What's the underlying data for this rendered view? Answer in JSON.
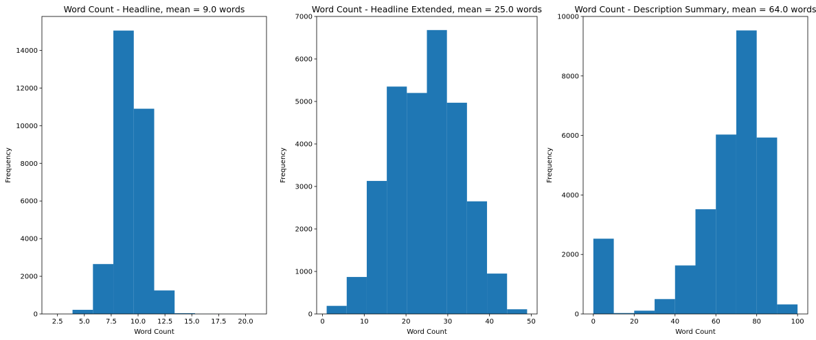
{
  "chart_data": [
    {
      "type": "bar",
      "title": "Word Count - Headline, mean = 9.0 words",
      "xlabel": "Word Count",
      "ylabel": "Frequency",
      "xlim": [
        1.05,
        21.95
      ],
      "ylim": [
        0,
        15800
      ],
      "xticks": [
        2.5,
        5.0,
        7.5,
        10.0,
        12.5,
        15.0,
        17.5,
        20.0
      ],
      "xtick_labels": [
        "2.5",
        "5.0",
        "7.5",
        "10.0",
        "12.5",
        "15.0",
        "17.5",
        "20.0"
      ],
      "yticks": [
        0,
        2000,
        4000,
        6000,
        8000,
        10000,
        12000,
        14000
      ],
      "ytick_labels": [
        "0",
        "2000",
        "4000",
        "6000",
        "8000",
        "10000",
        "12000",
        "14000"
      ],
      "bins": [
        {
          "x0": 2.0,
          "x1": 3.9,
          "value": 0
        },
        {
          "x0": 3.9,
          "x1": 5.8,
          "value": 220
        },
        {
          "x0": 5.8,
          "x1": 7.7,
          "value": 2650
        },
        {
          "x0": 7.7,
          "x1": 9.6,
          "value": 15050
        },
        {
          "x0": 9.6,
          "x1": 11.5,
          "value": 10900
        },
        {
          "x0": 11.5,
          "x1": 13.4,
          "value": 1250
        },
        {
          "x0": 13.4,
          "x1": 15.3,
          "value": 40
        },
        {
          "x0": 15.3,
          "x1": 17.2,
          "value": 5
        },
        {
          "x0": 17.2,
          "x1": 19.1,
          "value": 2
        },
        {
          "x0": 19.1,
          "x1": 21.0,
          "value": 1
        }
      ]
    },
    {
      "type": "bar",
      "title": "Word Count - Headline Extended, mean = 25.0 words",
      "xlabel": "Word Count",
      "ylabel": "Frequency",
      "xlim": [
        -1.4,
        51.4
      ],
      "ylim": [
        0,
        7000
      ],
      "xticks": [
        0,
        10,
        20,
        30,
        40,
        50
      ],
      "xtick_labels": [
        "0",
        "10",
        "20",
        "30",
        "40",
        "50"
      ],
      "yticks": [
        0,
        1000,
        2000,
        3000,
        4000,
        5000,
        6000,
        7000
      ],
      "ytick_labels": [
        "0",
        "1000",
        "2000",
        "3000",
        "4000",
        "5000",
        "6000",
        "7000"
      ],
      "bins": [
        {
          "x0": 1.0,
          "x1": 5.8,
          "value": 190
        },
        {
          "x0": 5.8,
          "x1": 10.6,
          "value": 870
        },
        {
          "x0": 10.6,
          "x1": 15.4,
          "value": 3130
        },
        {
          "x0": 15.4,
          "x1": 20.2,
          "value": 5350
        },
        {
          "x0": 20.2,
          "x1": 25.0,
          "value": 5200
        },
        {
          "x0": 25.0,
          "x1": 29.8,
          "value": 6680
        },
        {
          "x0": 29.8,
          "x1": 34.6,
          "value": 4970
        },
        {
          "x0": 34.6,
          "x1": 39.4,
          "value": 2650
        },
        {
          "x0": 39.4,
          "x1": 44.2,
          "value": 950
        },
        {
          "x0": 44.2,
          "x1": 49.0,
          "value": 110
        }
      ]
    },
    {
      "type": "bar",
      "title": "Word Count - Description Summary, mean = 64.0 words",
      "xlabel": "Word Count",
      "ylabel": "Frequency",
      "xlim": [
        -5,
        105
      ],
      "ylim": [
        0,
        10000
      ],
      "xticks": [
        0,
        20,
        40,
        60,
        80,
        100
      ],
      "xtick_labels": [
        "0",
        "20",
        "40",
        "60",
        "80",
        "100"
      ],
      "yticks": [
        0,
        2000,
        4000,
        6000,
        8000,
        10000
      ],
      "ytick_labels": [
        "0",
        "2000",
        "4000",
        "6000",
        "8000",
        "10000"
      ],
      "bins": [
        {
          "x0": 0,
          "x1": 10,
          "value": 2530
        },
        {
          "x0": 10,
          "x1": 20,
          "value": 30
        },
        {
          "x0": 20,
          "x1": 30,
          "value": 110
        },
        {
          "x0": 30,
          "x1": 40,
          "value": 500
        },
        {
          "x0": 40,
          "x1": 50,
          "value": 1630
        },
        {
          "x0": 50,
          "x1": 60,
          "value": 3520
        },
        {
          "x0": 60,
          "x1": 70,
          "value": 6030
        },
        {
          "x0": 70,
          "x1": 80,
          "value": 9530
        },
        {
          "x0": 80,
          "x1": 90,
          "value": 5930
        },
        {
          "x0": 90,
          "x1": 100,
          "value": 320
        }
      ]
    }
  ]
}
